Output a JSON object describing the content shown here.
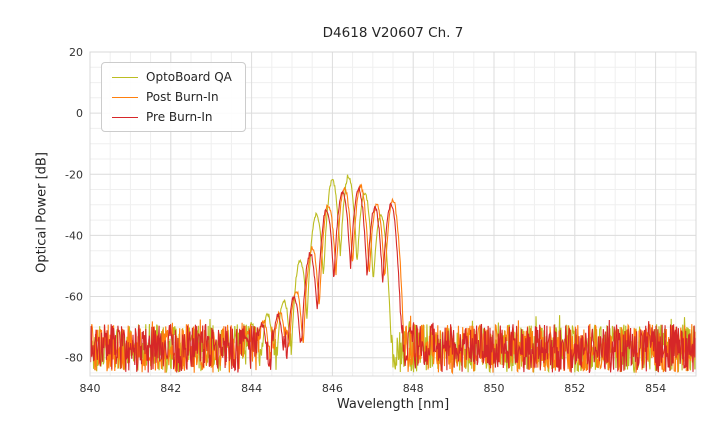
{
  "chart_data": {
    "type": "line",
    "title": "D4618 V20607 Ch. 7",
    "xlabel": "Wavelength [nm]",
    "ylabel": "Optical Power [dB]",
    "xlim": [
      840,
      855
    ],
    "ylim": [
      -86,
      20
    ],
    "xticks": [
      840,
      842,
      844,
      846,
      848,
      850,
      852,
      854
    ],
    "yticks": [
      20,
      0,
      -20,
      -40,
      -60,
      -80
    ],
    "grid": {
      "on": true,
      "x_minor_step": 0.5,
      "y_minor_step": 5,
      "major_color": "#dcdcdc",
      "minor_color": "#efefef"
    },
    "legend": {
      "position": "upper-left",
      "entries": [
        "OptoBoard QA",
        "Post Burn-In",
        "Pre Burn-In"
      ]
    },
    "noise": {
      "seed": 1337,
      "base": -85,
      "spread": 16,
      "spike_prob": 0.04,
      "spike": 3,
      "sample_step": 0.015,
      "jitter": 1.6
    },
    "signal": {
      "half_width": 0.2,
      "falloff": 26
    },
    "series": [
      {
        "name": "OptoBoard QA",
        "color": "#bcbd22",
        "lobes": [
          [
            843.6,
            -74
          ],
          [
            844.0,
            -69
          ],
          [
            844.4,
            -66
          ],
          [
            844.8,
            -61
          ],
          [
            845.2,
            -48
          ],
          [
            845.6,
            -33
          ],
          [
            846.0,
            -22
          ],
          [
            846.4,
            -20.5
          ],
          [
            846.8,
            -26
          ],
          [
            847.2,
            -33
          ]
        ]
      },
      {
        "name": "Post Burn-In",
        "color": "#ff7f0e",
        "lobes": [
          [
            843.9,
            -72
          ],
          [
            844.3,
            -68
          ],
          [
            844.7,
            -65
          ],
          [
            845.1,
            -58
          ],
          [
            845.5,
            -44
          ],
          [
            845.9,
            -30
          ],
          [
            846.3,
            -24.5
          ],
          [
            846.7,
            -24
          ],
          [
            847.1,
            -30
          ],
          [
            847.5,
            -28.5
          ]
        ]
      },
      {
        "name": "Pre Burn-In",
        "color": "#d62728",
        "lobes": [
          [
            843.85,
            -73
          ],
          [
            844.25,
            -69
          ],
          [
            844.65,
            -66
          ],
          [
            845.05,
            -60
          ],
          [
            845.45,
            -46
          ],
          [
            845.85,
            -32
          ],
          [
            846.25,
            -25.5
          ],
          [
            846.65,
            -25
          ],
          [
            847.05,
            -31
          ],
          [
            847.45,
            -30
          ]
        ]
      }
    ]
  }
}
